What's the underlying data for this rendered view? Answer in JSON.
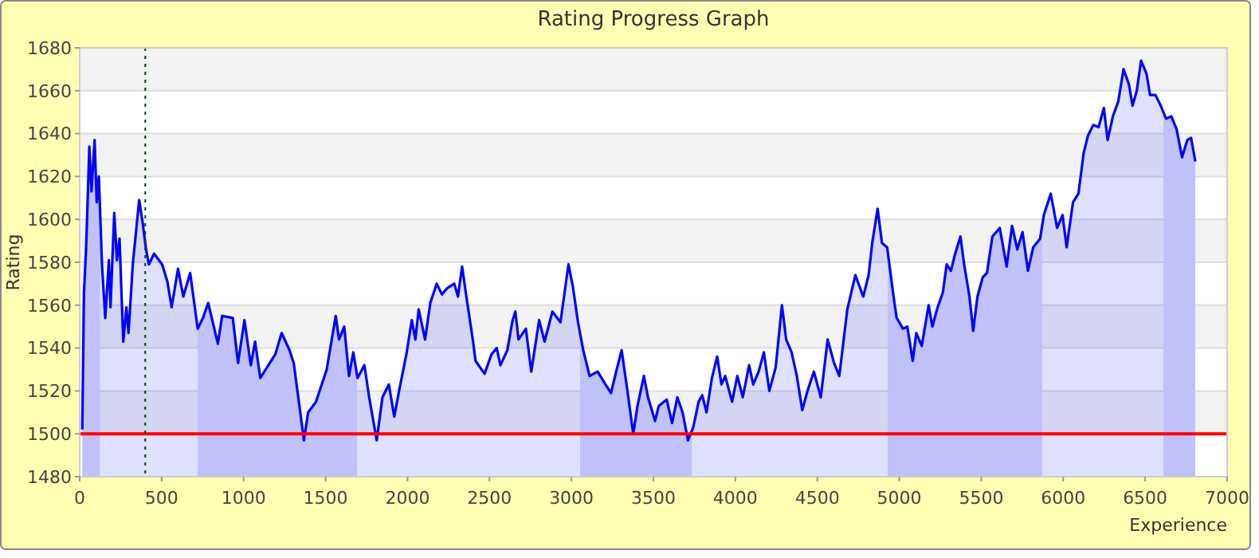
{
  "chart_data": {
    "type": "area",
    "title": "Rating Progress Graph",
    "xlabel": "Experience",
    "ylabel": "Rating",
    "xlim": [
      0,
      7000
    ],
    "xticks": [
      0,
      500,
      1000,
      1500,
      2000,
      2500,
      3000,
      3500,
      4000,
      4500,
      5000,
      5500,
      6000,
      6500,
      7000
    ],
    "ylim": [
      1480,
      1680
    ],
    "yticks": [
      1480,
      1500,
      1520,
      1540,
      1560,
      1580,
      1600,
      1620,
      1640,
      1660,
      1680
    ],
    "grid": "y",
    "series": [
      {
        "color": "#0000ff",
        "x": [
          16,
          26,
          39,
          59,
          72,
          91,
          104,
          117,
          136,
          156,
          178,
          188,
          211,
          227,
          243,
          266,
          285,
          298,
          324,
          363,
          383,
          405,
          422,
          454,
          503,
          535,
          561,
          600,
          632,
          674,
          720,
          752,
          784,
          843,
          869,
          934,
          966,
          1005,
          1044,
          1070,
          1102,
          1151,
          1193,
          1232,
          1280,
          1306,
          1368,
          1394,
          1442,
          1507,
          1562,
          1582,
          1614,
          1643,
          1669,
          1695,
          1737,
          1766,
          1812,
          1847,
          1886,
          1919,
          1951,
          1993,
          2026,
          2048,
          2068,
          2107,
          2139,
          2178,
          2210,
          2243,
          2285,
          2308,
          2333,
          2359,
          2398,
          2415,
          2470,
          2512,
          2544,
          2567,
          2609,
          2641,
          2658,
          2677,
          2722,
          2755,
          2803,
          2836,
          2884,
          2933,
          2982,
          3008,
          3040,
          3072,
          3111,
          3160,
          3208,
          3241,
          3273,
          3306,
          3338,
          3377,
          3403,
          3442,
          3467,
          3510,
          3533,
          3581,
          3614,
          3646,
          3678,
          3711,
          3743,
          3776,
          3798,
          3824,
          3857,
          3889,
          3915,
          3938,
          3980,
          4012,
          4045,
          4084,
          4109,
          4142,
          4174,
          4207,
          4246,
          4284,
          4310,
          4343,
          4375,
          4408,
          4440,
          4479,
          4521,
          4563,
          4602,
          4634,
          4683,
          4732,
          4780,
          4813,
          4835,
          4868,
          4894,
          4926,
          4965,
          4984,
          5023,
          5049,
          5082,
          5104,
          5137,
          5179,
          5202,
          5234,
          5266,
          5289,
          5315,
          5341,
          5373,
          5396,
          5428,
          5451,
          5477,
          5509,
          5535,
          5568,
          5613,
          5655,
          5688,
          5720,
          5752,
          5785,
          5817,
          5859,
          5882,
          5924,
          5963,
          5996,
          6021,
          6060,
          6093,
          6125,
          6151,
          6183,
          6216,
          6248,
          6271,
          6303,
          6336,
          6368,
          6401,
          6423,
          6449,
          6475,
          6508,
          6530,
          6563,
          6595,
          6627,
          6660,
          6692,
          6725,
          6757,
          6780,
          6806
        ],
        "values": [
          1502,
          1566,
          1586,
          1634,
          1613,
          1637,
          1608,
          1620,
          1579,
          1554,
          1581,
          1559,
          1603,
          1581,
          1591,
          1543,
          1559,
          1547,
          1579,
          1609,
          1599,
          1586,
          1579,
          1584,
          1579,
          1571,
          1559,
          1577,
          1564,
          1575,
          1549,
          1554,
          1561,
          1542,
          1555,
          1554,
          1533,
          1553,
          1532,
          1543,
          1526,
          1532,
          1537,
          1547,
          1539,
          1533,
          1497,
          1510,
          1515,
          1530,
          1555,
          1544,
          1550,
          1527,
          1538,
          1526,
          1532,
          1517,
          1497,
          1517,
          1523,
          1508,
          1521,
          1537,
          1553,
          1544,
          1558,
          1544,
          1561,
          1570,
          1565,
          1568,
          1570,
          1564,
          1578,
          1564,
          1544,
          1534,
          1528,
          1537,
          1540,
          1532,
          1539,
          1553,
          1557,
          1544,
          1549,
          1529,
          1553,
          1543,
          1557,
          1552,
          1579,
          1569,
          1552,
          1539,
          1527,
          1529,
          1523,
          1519,
          1529,
          1539,
          1522,
          1500,
          1513,
          1527,
          1517,
          1506,
          1513,
          1516,
          1505,
          1517,
          1510,
          1497,
          1503,
          1515,
          1518,
          1510,
          1526,
          1536,
          1523,
          1527,
          1515,
          1527,
          1517,
          1532,
          1523,
          1529,
          1538,
          1520,
          1531,
          1560,
          1544,
          1538,
          1527,
          1511,
          1520,
          1529,
          1517,
          1544,
          1533,
          1527,
          1558,
          1574,
          1564,
          1574,
          1589,
          1605,
          1589,
          1587,
          1564,
          1554,
          1549,
          1550,
          1534,
          1547,
          1541,
          1560,
          1550,
          1559,
          1566,
          1579,
          1576,
          1584,
          1592,
          1579,
          1564,
          1548,
          1564,
          1573,
          1575,
          1592,
          1596,
          1578,
          1597,
          1586,
          1594,
          1576,
          1587,
          1591,
          1602,
          1612,
          1596,
          1602,
          1587,
          1608,
          1612,
          1631,
          1639,
          1644,
          1643,
          1652,
          1637,
          1648,
          1655,
          1670,
          1663,
          1653,
          1660,
          1674,
          1668,
          1658,
          1658,
          1653,
          1647,
          1648,
          1642,
          1629,
          1637,
          1638,
          1627
        ]
      }
    ],
    "bands": [
      {
        "axis": "x",
        "from": 0,
        "to": 123,
        "color": "#dcdcfa"
      },
      {
        "axis": "x",
        "from": 720,
        "to": 1692,
        "color": "#dcdcfa"
      },
      {
        "axis": "x",
        "from": 3053,
        "to": 3734,
        "color": "#dcdcfa"
      },
      {
        "axis": "x",
        "from": 4929,
        "to": 5872,
        "color": "#dcdcfa"
      },
      {
        "axis": "x",
        "from": 6611,
        "to": 6806,
        "color": "#dcdcfa"
      }
    ],
    "ref_lines": [
      {
        "axis": "y",
        "value": 1500,
        "color": "#ff0000",
        "line_style": "solid"
      },
      {
        "axis": "x",
        "value": 400,
        "color": "#004400",
        "line_style": "dotted"
      }
    ]
  }
}
